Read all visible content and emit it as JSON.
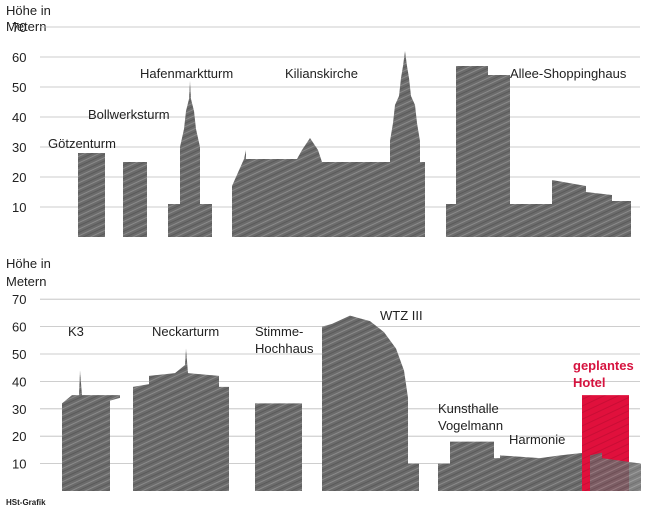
{
  "credit": "HSt-Grafik",
  "colors": {
    "building": "#6b6b6b",
    "highlight": "#e0103c",
    "grid": "#bdbdbd",
    "text": "#222222",
    "highlight_text": "#d6133f"
  },
  "chart_data": [
    {
      "type": "bar",
      "ylabel_lines": [
        "Höhe in",
        "Metern"
      ],
      "ylim": [
        0,
        70
      ],
      "yticks": [
        10,
        20,
        30,
        40,
        50,
        60,
        70
      ],
      "grid": true,
      "categories": [
        "Götzenturm",
        "Bollwerksturm",
        "Hafenmarktturm",
        "Kilianskirche",
        "Allee-Shoppinghaus"
      ],
      "values": [
        28,
        25,
        52,
        62,
        57
      ]
    },
    {
      "type": "bar",
      "ylabel_lines": [
        "Höhe in",
        "Metern"
      ],
      "ylim": [
        0,
        70
      ],
      "yticks": [
        10,
        20,
        30,
        40,
        50,
        60,
        70
      ],
      "grid": true,
      "categories": [
        "K3",
        "Neckarturm",
        "Stimme-Hochhaus",
        "WTZ III",
        "Kunsthalle Vogelmann",
        "Harmonie",
        "geplantes Hotel"
      ],
      "label_lines": [
        [
          "K3"
        ],
        [
          "Neckarturm"
        ],
        [
          "Stimme-",
          "Hochhaus"
        ],
        [
          "WTZ III"
        ],
        [
          "Kunsthalle",
          "Vogelmann"
        ],
        [
          "Harmonie"
        ],
        [
          "geplantes",
          "Hotel"
        ]
      ],
      "values": [
        44,
        52,
        32,
        64,
        18,
        14,
        35
      ],
      "highlight": "geplantes Hotel"
    }
  ]
}
